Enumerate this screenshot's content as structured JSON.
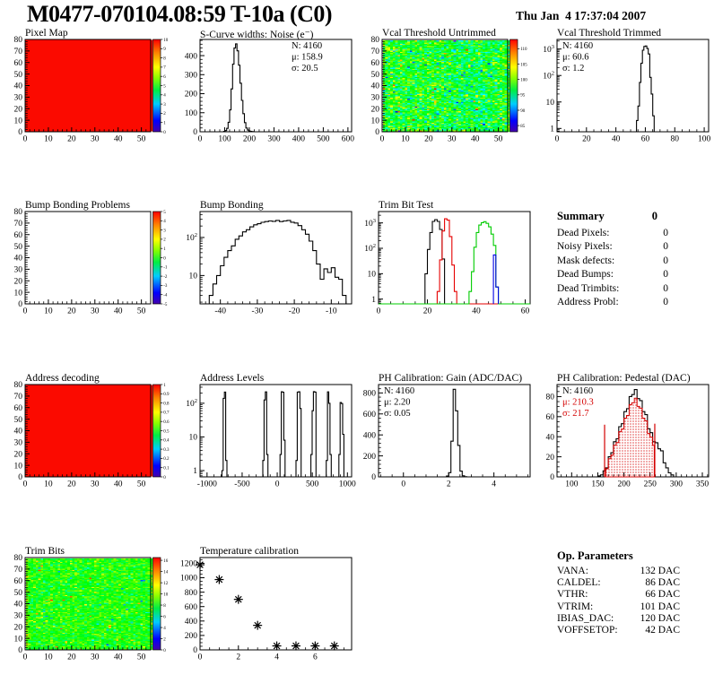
{
  "header": {
    "title": "M0477-070104.08:59 T-10a (C0)",
    "date": "Thu Jan  4 17:37:04 2007"
  },
  "summary": {
    "heading": "Summary",
    "value": "0",
    "rows": [
      {
        "label": "Dead Pixels:",
        "value": "0"
      },
      {
        "label": "Noisy Pixels:",
        "value": "0"
      },
      {
        "label": "Mask defects:",
        "value": "0"
      },
      {
        "label": "Dead Bumps:",
        "value": "0"
      },
      {
        "label": "Dead Trimbits:",
        "value": "0"
      },
      {
        "label": "Address Probl:",
        "value": "0"
      }
    ]
  },
  "op_parameters": {
    "heading": "Op. Parameters",
    "rows": [
      {
        "label": "VANA:",
        "value": "132 DAC"
      },
      {
        "label": "CALDEL:",
        "value": "86 DAC"
      },
      {
        "label": "VTHR:",
        "value": "66 DAC"
      },
      {
        "label": "VTRIM:",
        "value": "101 DAC"
      },
      {
        "label": "IBIAS_DAC:",
        "value": "120 DAC"
      },
      {
        "label": "VOFFSETOP:",
        "value": "42 DAC"
      }
    ]
  },
  "colors": {
    "map_red": "#fb0a00",
    "hist_black": "#000000",
    "hist_red": "#e60000",
    "hist_green": "#00cc00",
    "hist_blue": "#0000e6",
    "fit_red": "#d40000"
  },
  "chart_data": [
    {
      "title": "Pixel Map",
      "type": "heatmap",
      "variant": "solid",
      "row": 0,
      "col": 0,
      "x": {
        "min": 0,
        "max": 54,
        "ticks": [
          0,
          10,
          20,
          30,
          40,
          50
        ],
        "minor": 2
      },
      "y": {
        "min": 0,
        "max": 80,
        "ticks": [
          0,
          10,
          20,
          30,
          40,
          50,
          60,
          70,
          80
        ],
        "minor": 2
      },
      "colorbar": {
        "labels": [
          [
            "10",
            1
          ],
          [
            "9",
            0.9
          ],
          [
            "8",
            0.8
          ],
          [
            "7",
            0.7
          ],
          [
            "6",
            0.6
          ],
          [
            "5",
            0.5
          ],
          [
            "4",
            0.4
          ],
          [
            "3",
            0.3
          ],
          [
            "2",
            0.2
          ],
          [
            "1",
            0.1
          ],
          [
            "0",
            0
          ]
        ]
      }
    },
    {
      "title": "S-Curve widths: Noise (e⁻)",
      "type": "hist",
      "row": 0,
      "col": 1,
      "x": {
        "min": 0,
        "max": 615,
        "ticks": [
          0,
          100,
          200,
          300,
          400,
          500,
          600
        ],
        "minor": 20
      },
      "y": {
        "min": 0,
        "max": 485,
        "ticks": [
          0,
          100,
          200,
          300,
          400
        ],
        "minor": 20
      },
      "series": [
        {
          "color": "#000000",
          "x0": 96,
          "w": 6,
          "values": [
            2,
            6,
            18,
            50,
            115,
            225,
            355,
            440,
            462,
            425,
            350,
            255,
            165,
            95,
            48,
            20,
            9,
            4,
            2,
            1
          ]
        }
      ],
      "stats": {
        "pos": "tr",
        "lines": [
          {
            "text": "N: 4160",
            "color": "#000000"
          },
          {
            "text": "μ: 158.9",
            "color": "#000000"
          },
          {
            "text": "σ: 20.5",
            "color": "#000000"
          }
        ]
      }
    },
    {
      "title": "Vcal Threshold Untrimmed",
      "type": "heatmap",
      "variant": "noise",
      "row": 0,
      "col": 2,
      "x": {
        "min": 0,
        "max": 54,
        "ticks": [
          0,
          10,
          20,
          30,
          40,
          50
        ],
        "minor": 2
      },
      "y": {
        "min": 0,
        "max": 80,
        "ticks": [
          0,
          10,
          20,
          30,
          40,
          50,
          60,
          70,
          80
        ],
        "minor": 2
      },
      "noise": {
        "seed": 7,
        "mean": 100,
        "sigma": 3.1,
        "outlier_prob": 0.035,
        "outlier_spread": 7,
        "cmin": 83,
        "cmax": 113,
        "band_center": 36,
        "band_depth": 2.4
      },
      "colorbar": {
        "labels": [
          [
            "110",
            0.9
          ],
          [
            "105",
            0.733
          ],
          [
            "100",
            0.567
          ],
          [
            "95",
            0.4
          ],
          [
            "90",
            0.233
          ],
          [
            "85",
            0.067
          ]
        ]
      }
    },
    {
      "title": "Vcal Threshold Trimmed",
      "type": "hist",
      "row": 0,
      "col": 3,
      "x": {
        "min": 0,
        "max": 103,
        "ticks": [
          0,
          20,
          40,
          60,
          80,
          100
        ],
        "minor": 5
      },
      "y": {
        "scale": "log",
        "min": 0.75,
        "max": 2300,
        "decades": [
          0,
          1,
          2,
          3
        ]
      },
      "series": [
        {
          "color": "#000000",
          "x0": 54,
          "w": 1,
          "values": [
            2,
            7,
            55,
            290,
            900,
            1250,
            1300,
            1050,
            650,
            85,
            20,
            3
          ]
        }
      ],
      "stats": {
        "pos": "tl",
        "lines": [
          {
            "text": "N: 4160",
            "color": "#000000"
          },
          {
            "text": "μ: 60.6",
            "color": "#000000"
          },
          {
            "text": "σ: 1.2",
            "color": "#000000"
          }
        ]
      }
    },
    {
      "title": "Bump Bonding Problems",
      "type": "heatmap",
      "variant": "empty",
      "row": 1,
      "col": 0,
      "x": {
        "min": 0,
        "max": 54,
        "ticks": [
          0,
          10,
          20,
          30,
          40,
          50
        ],
        "minor": 2
      },
      "y": {
        "min": 0,
        "max": 80,
        "ticks": [
          0,
          10,
          20,
          30,
          40,
          50,
          60,
          70,
          80
        ],
        "minor": 2
      },
      "colorbar": {
        "labels": [
          [
            "5",
            1
          ],
          [
            "4",
            0.9
          ],
          [
            "3",
            0.8
          ],
          [
            "2",
            0.7
          ],
          [
            "1",
            0.6
          ],
          [
            "0",
            0.5
          ],
          [
            "-1",
            0.4
          ],
          [
            "-2",
            0.3
          ],
          [
            "-3",
            0.2
          ],
          [
            "-4",
            0.1
          ],
          [
            "-5",
            0
          ]
        ]
      }
    },
    {
      "title": "Bump Bonding",
      "type": "hist",
      "row": 1,
      "col": 1,
      "x": {
        "min": -45.5,
        "max": -4.5,
        "ticks": [
          -40,
          -30,
          -20,
          -10
        ],
        "minor": 2
      },
      "y": {
        "scale": "log",
        "min": 1.8,
        "max": 480,
        "decades": [
          1,
          2
        ]
      },
      "series": [
        {
          "color": "#000000",
          "x0": -43,
          "w": 1,
          "values": [
            3,
            6,
            10,
            18,
            30,
            45,
            60,
            90,
            110,
            140,
            160,
            190,
            215,
            230,
            250,
            262,
            272,
            266,
            280,
            262,
            272,
            281,
            252,
            240,
            205,
            160,
            122,
            80,
            45,
            20,
            8,
            15,
            12,
            16,
            9,
            8,
            3
          ]
        }
      ]
    },
    {
      "title": "Trim Bit Test",
      "type": "hist",
      "row": 1,
      "col": 2,
      "x": {
        "min": 0,
        "max": 62,
        "ticks": [
          0,
          20,
          40,
          60
        ],
        "minor": 5
      },
      "y": {
        "scale": "log",
        "min": 0.65,
        "max": 2800,
        "decades": [
          0,
          1,
          2,
          3
        ]
      },
      "series": [
        {
          "color": "#000000",
          "x0": 19,
          "w": 1,
          "values": [
            10,
            90,
            420,
            1150,
            1350,
            1150,
            550,
            38
          ],
          "full": true
        },
        {
          "color": "#e60000",
          "x0": 24,
          "w": 1,
          "values": [
            2,
            35,
            480,
            1450,
            1280,
            290,
            22,
            2
          ],
          "full": true
        },
        {
          "color": "#00cc00",
          "x0": 37,
          "w": 1,
          "values": [
            2,
            12,
            110,
            420,
            820,
            1020,
            1120,
            960,
            700,
            360,
            130,
            3
          ],
          "full": true
        },
        {
          "color": "#0000e6",
          "x0": 47,
          "w": 1,
          "values": [
            55,
            3
          ]
        }
      ]
    },
    {
      "title": "Address decoding",
      "type": "heatmap",
      "variant": "solid",
      "row": 2,
      "col": 0,
      "x": {
        "min": 0,
        "max": 54,
        "ticks": [
          0,
          10,
          20,
          30,
          40,
          50
        ],
        "minor": 2
      },
      "y": {
        "min": 0,
        "max": 80,
        "ticks": [
          0,
          10,
          20,
          30,
          40,
          50,
          60,
          70,
          80
        ],
        "minor": 2
      },
      "colorbar": {
        "labels": [
          [
            "1",
            1
          ],
          [
            "0.9",
            0.9
          ],
          [
            "0.8",
            0.8
          ],
          [
            "0.7",
            0.7
          ],
          [
            "0.6",
            0.6
          ],
          [
            "0.5",
            0.5
          ],
          [
            "0.4",
            0.4
          ],
          [
            "0.3",
            0.3
          ],
          [
            "0.2",
            0.2
          ],
          [
            "0.1",
            0.1
          ],
          [
            "0",
            0
          ]
        ]
      }
    },
    {
      "title": "Address Levels",
      "type": "hist",
      "row": 2,
      "col": 1,
      "x": {
        "min": -1100,
        "max": 1060,
        "ticks": [
          -1000,
          -500,
          0,
          500,
          1000
        ],
        "minor": 100
      },
      "y": {
        "scale": "log",
        "min": 0.65,
        "max": 360,
        "decades": [
          0,
          1,
          2
        ]
      },
      "series": [
        {
          "color": "#000000",
          "x0": -788,
          "w": 18,
          "values": [
            1,
            140,
            215,
            2
          ]
        },
        {
          "color": "#000000",
          "x0": -205,
          "w": 18,
          "values": [
            2,
            125,
            218,
            3
          ]
        },
        {
          "color": "#000000",
          "x0": 40,
          "w": 18,
          "values": [
            3,
            220,
            212,
            8
          ]
        },
        {
          "color": "#000000",
          "x0": 268,
          "w": 18,
          "values": [
            2,
            215,
            220,
            70
          ]
        },
        {
          "color": "#000000",
          "x0": 480,
          "w": 18,
          "values": [
            3,
            60,
            222,
            215
          ]
        },
        {
          "color": "#000000",
          "x0": 698,
          "w": 18,
          "values": [
            2,
            218,
            100,
            3
          ]
        },
        {
          "color": "#000000",
          "x0": 878,
          "w": 18,
          "values": [
            3,
            105,
            98,
            12
          ]
        }
      ]
    },
    {
      "title": "PH Calibration: Gain (ADC/DAC)",
      "type": "hist",
      "row": 2,
      "col": 2,
      "x": {
        "min": -1.1,
        "max": 5.6,
        "ticks": [
          0,
          2,
          4
        ],
        "minor": 0.5
      },
      "y": {
        "min": 0,
        "max": 880,
        "ticks": [
          0,
          200,
          400,
          600,
          800
        ],
        "minor": 40
      },
      "series": [
        {
          "color": "#000000",
          "x0": 1.9,
          "w": 0.1,
          "values": [
            8,
            40,
            340,
            835,
            630,
            300,
            55,
            10,
            2
          ]
        }
      ],
      "stats": {
        "pos": "tl",
        "lines": [
          {
            "text": "N: 4160",
            "color": "#000000"
          },
          {
            "text": "μ: 2.20",
            "color": "#000000"
          },
          {
            "text": "σ: 0.05",
            "color": "#000000"
          }
        ]
      }
    },
    {
      "title": "PH Calibration: Pedestal (DAC)",
      "type": "hist",
      "row": 2,
      "col": 3,
      "x": {
        "min": 72,
        "max": 362,
        "ticks": [
          100,
          150,
          200,
          250,
          300,
          350
        ],
        "minor": 10
      },
      "y": {
        "min": 0,
        "max": 92,
        "ticks": [
          0,
          20,
          40,
          60,
          80
        ],
        "minor": 5
      },
      "series": [
        {
          "color": "#000000",
          "x0": 150,
          "w": 5,
          "values": [
            1,
            2,
            6,
            9,
            20,
            24,
            35,
            38,
            50,
            53,
            65,
            68,
            80,
            82,
            87,
            78,
            76,
            65,
            62,
            48,
            44,
            35,
            34,
            28,
            26,
            14,
            9,
            4,
            2
          ]
        }
      ],
      "fit": {
        "color": "#d40000",
        "scale": 0.9,
        "xmin": 165,
        "xmax": 258,
        "lines": [
          [
            163,
            52
          ],
          [
            259,
            53
          ]
        ]
      },
      "stats": {
        "pos": "tl",
        "lines": [
          {
            "text": "N: 4160",
            "color": "#000000"
          },
          {
            "text": "μ: 210.3",
            "color": "#d40000"
          },
          {
            "text": "σ: 21.7",
            "color": "#d40000"
          }
        ]
      }
    },
    {
      "title": "Trim Bits",
      "type": "heatmap",
      "variant": "noise",
      "row": 3,
      "col": 0,
      "x": {
        "min": 0,
        "max": 54,
        "ticks": [
          0,
          10,
          20,
          30,
          40,
          50
        ],
        "minor": 2
      },
      "y": {
        "min": 0,
        "max": 80,
        "ticks": [
          0,
          10,
          20,
          30,
          40,
          50,
          60,
          70,
          80
        ],
        "minor": 2
      },
      "noise": {
        "seed": 13,
        "mean": 9.6,
        "sigma": 1.05,
        "outlier_prob": 0.03,
        "outlier_spread": 3.2,
        "cmin": 0,
        "cmax": 16.5
      },
      "colorbar": {
        "labels": [
          [
            "16",
            0.97
          ],
          [
            "14",
            0.848
          ],
          [
            "12",
            0.727
          ],
          [
            "10",
            0.606
          ],
          [
            "8",
            0.485
          ],
          [
            "6",
            0.364
          ],
          [
            "4",
            0.242
          ],
          [
            "2",
            0.121
          ],
          [
            "0",
            0
          ]
        ]
      }
    },
    {
      "title": "Temperature calibration",
      "type": "scatter",
      "row": 3,
      "col": 1,
      "x": {
        "min": 0,
        "max": 7.9,
        "ticks": [
          0,
          2,
          4,
          6
        ],
        "minor": 0.5
      },
      "y": {
        "min": 0,
        "max": 1280,
        "ticks": [
          0,
          200,
          400,
          600,
          800,
          1000,
          1200
        ],
        "minor": 50
      },
      "points": [
        [
          0,
          1180
        ],
        [
          1,
          975
        ],
        [
          2,
          700
        ],
        [
          3,
          340
        ],
        [
          4,
          55
        ],
        [
          5,
          55
        ],
        [
          6,
          55
        ],
        [
          7,
          55
        ]
      ],
      "marker": "asterisk"
    }
  ]
}
